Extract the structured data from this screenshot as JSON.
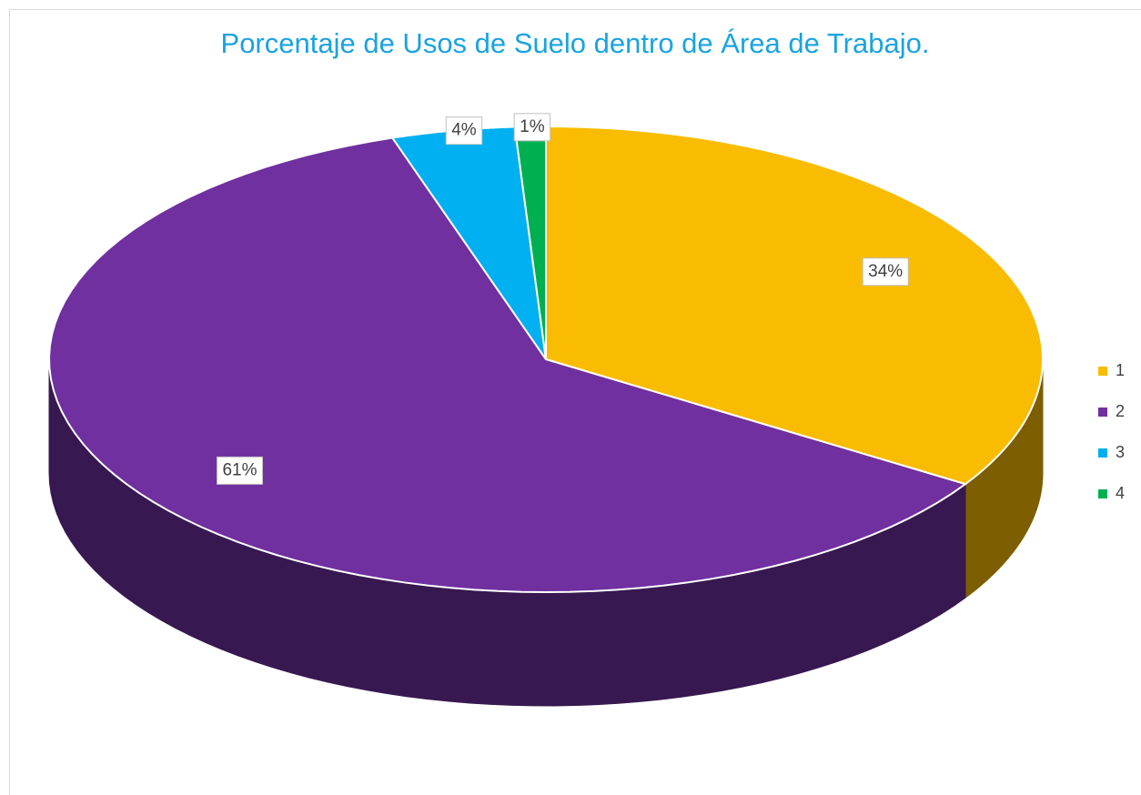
{
  "chart_data": {
    "type": "pie",
    "title": "Porcentaje de Usos de Suelo dentro de Área de Trabajo.",
    "categories": [
      "1",
      "2",
      "3",
      "4"
    ],
    "values": [
      34,
      61,
      4,
      1
    ],
    "value_labels": [
      "34%",
      "61%",
      "4%",
      "1%"
    ],
    "colors": [
      "#f9bc00",
      "#7030a0",
      "#00b0f0",
      "#00b050"
    ],
    "legend": "right"
  }
}
